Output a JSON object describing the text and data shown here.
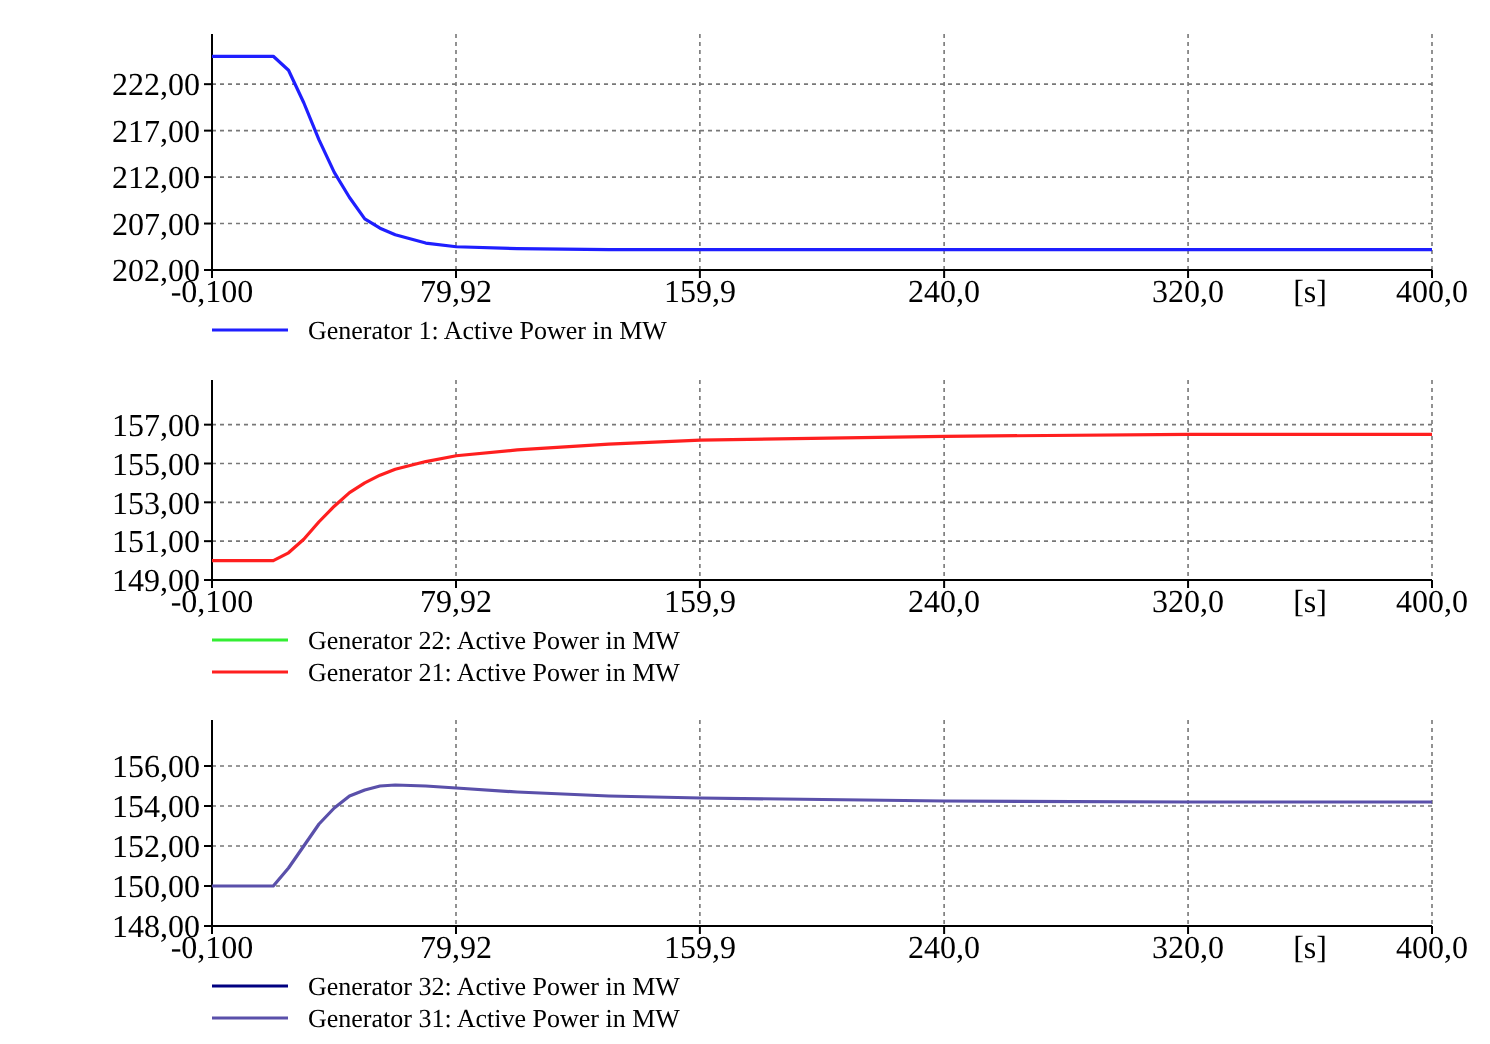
{
  "chart_data": [
    {
      "type": "line",
      "xlabel": "[s]",
      "grid": true,
      "legend": "bottom",
      "line_style": "solid",
      "marker": "none",
      "x": [
        -0.1,
        20,
        25,
        30,
        35,
        40,
        45,
        50,
        55,
        60,
        70,
        80,
        100,
        130,
        160,
        240,
        320,
        400
      ],
      "xlim": [
        -0.1,
        400.0
      ],
      "xticks": [
        {
          "value": -0.1,
          "label": "-0,100"
        },
        {
          "value": 79.92,
          "label": "79,92"
        },
        {
          "value": 159.9,
          "label": "159,9"
        },
        {
          "value": 240.0,
          "label": "240,0"
        },
        {
          "value": 320.0,
          "label": "320,0"
        },
        {
          "value": 400.0,
          "label": "400,0"
        }
      ],
      "ylim": [
        202,
        227.4
      ],
      "yticks": [
        {
          "value": 202,
          "label": "202,00"
        },
        {
          "value": 207,
          "label": "207,00"
        },
        {
          "value": 212,
          "label": "212,00"
        },
        {
          "value": 217,
          "label": "217,00"
        },
        {
          "value": 222,
          "label": "222,00"
        }
      ],
      "series": [
        {
          "name": "Generator 1: Active Power in MW",
          "color": "#1f1fff",
          "values": [
            225.0,
            225.0,
            223.5,
            220.0,
            216.0,
            212.5,
            209.8,
            207.5,
            206.5,
            205.8,
            204.9,
            204.5,
            204.3,
            204.2,
            204.2,
            204.2,
            204.2,
            204.2
          ]
        }
      ]
    },
    {
      "type": "line",
      "xlabel": "[s]",
      "grid": true,
      "legend": "bottom",
      "line_style": "solid",
      "marker": "none",
      "x": [
        -0.1,
        20,
        25,
        30,
        35,
        40,
        45,
        50,
        55,
        60,
        70,
        80,
        100,
        130,
        160,
        240,
        320,
        400
      ],
      "xlim": [
        -0.1,
        400.0
      ],
      "xticks": [
        {
          "value": -0.1,
          "label": "-0,100"
        },
        {
          "value": 79.92,
          "label": "79,92"
        },
        {
          "value": 159.9,
          "label": "159,9"
        },
        {
          "value": 240.0,
          "label": "240,0"
        },
        {
          "value": 320.0,
          "label": "320,0"
        },
        {
          "value": 400.0,
          "label": "400,0"
        }
      ],
      "ylim": [
        149,
        159.3
      ],
      "yticks": [
        {
          "value": 149,
          "label": "149,00"
        },
        {
          "value": 151,
          "label": "151,00"
        },
        {
          "value": 153,
          "label": "153,00"
        },
        {
          "value": 155,
          "label": "155,00"
        },
        {
          "value": 157,
          "label": "157,00"
        }
      ],
      "series": [
        {
          "name": "Generator 22: Active Power in MW",
          "color": "#33ee33",
          "values": [
            null,
            null,
            null,
            null,
            null,
            null,
            null,
            null,
            null,
            null,
            null,
            null,
            null,
            null,
            null,
            null,
            null,
            null
          ]
        },
        {
          "name": "Generator 21: Active Power in MW",
          "color": "#ff1f1f",
          "values": [
            150.0,
            150.0,
            150.4,
            151.1,
            152.0,
            152.8,
            153.5,
            154.0,
            154.4,
            154.7,
            155.1,
            155.4,
            155.7,
            156.0,
            156.2,
            156.4,
            156.5,
            156.5
          ]
        }
      ]
    },
    {
      "type": "line",
      "xlabel": "[s]",
      "grid": true,
      "legend": "bottom",
      "line_style": "solid",
      "marker": "none",
      "x": [
        -0.1,
        20,
        25,
        30,
        35,
        40,
        45,
        50,
        55,
        60,
        70,
        80,
        100,
        130,
        160,
        240,
        320,
        400
      ],
      "xlim": [
        -0.1,
        400.0
      ],
      "xticks": [
        {
          "value": -0.1,
          "label": "-0,100"
        },
        {
          "value": 79.92,
          "label": "79,92"
        },
        {
          "value": 159.9,
          "label": "159,9"
        },
        {
          "value": 240.0,
          "label": "240,0"
        },
        {
          "value": 320.0,
          "label": "320,0"
        },
        {
          "value": 400.0,
          "label": "400,0"
        }
      ],
      "ylim": [
        148,
        158.3
      ],
      "yticks": [
        {
          "value": 148,
          "label": "148,00"
        },
        {
          "value": 150,
          "label": "150,00"
        },
        {
          "value": 152,
          "label": "152,00"
        },
        {
          "value": 154,
          "label": "154,00"
        },
        {
          "value": 156,
          "label": "156,00"
        }
      ],
      "series": [
        {
          "name": "Generator 32: Active Power in MW",
          "color": "#000080",
          "values": [
            null,
            null,
            null,
            null,
            null,
            null,
            null,
            null,
            null,
            null,
            null,
            null,
            null,
            null,
            null,
            null,
            null,
            null
          ]
        },
        {
          "name": "Generator 31: Active Power in MW",
          "color": "#5a50aa",
          "values": [
            150.0,
            150.0,
            150.9,
            152.0,
            153.1,
            153.9,
            154.5,
            154.8,
            155.0,
            155.05,
            155.0,
            154.9,
            154.7,
            154.5,
            154.4,
            154.25,
            154.2,
            154.2
          ]
        }
      ]
    }
  ]
}
